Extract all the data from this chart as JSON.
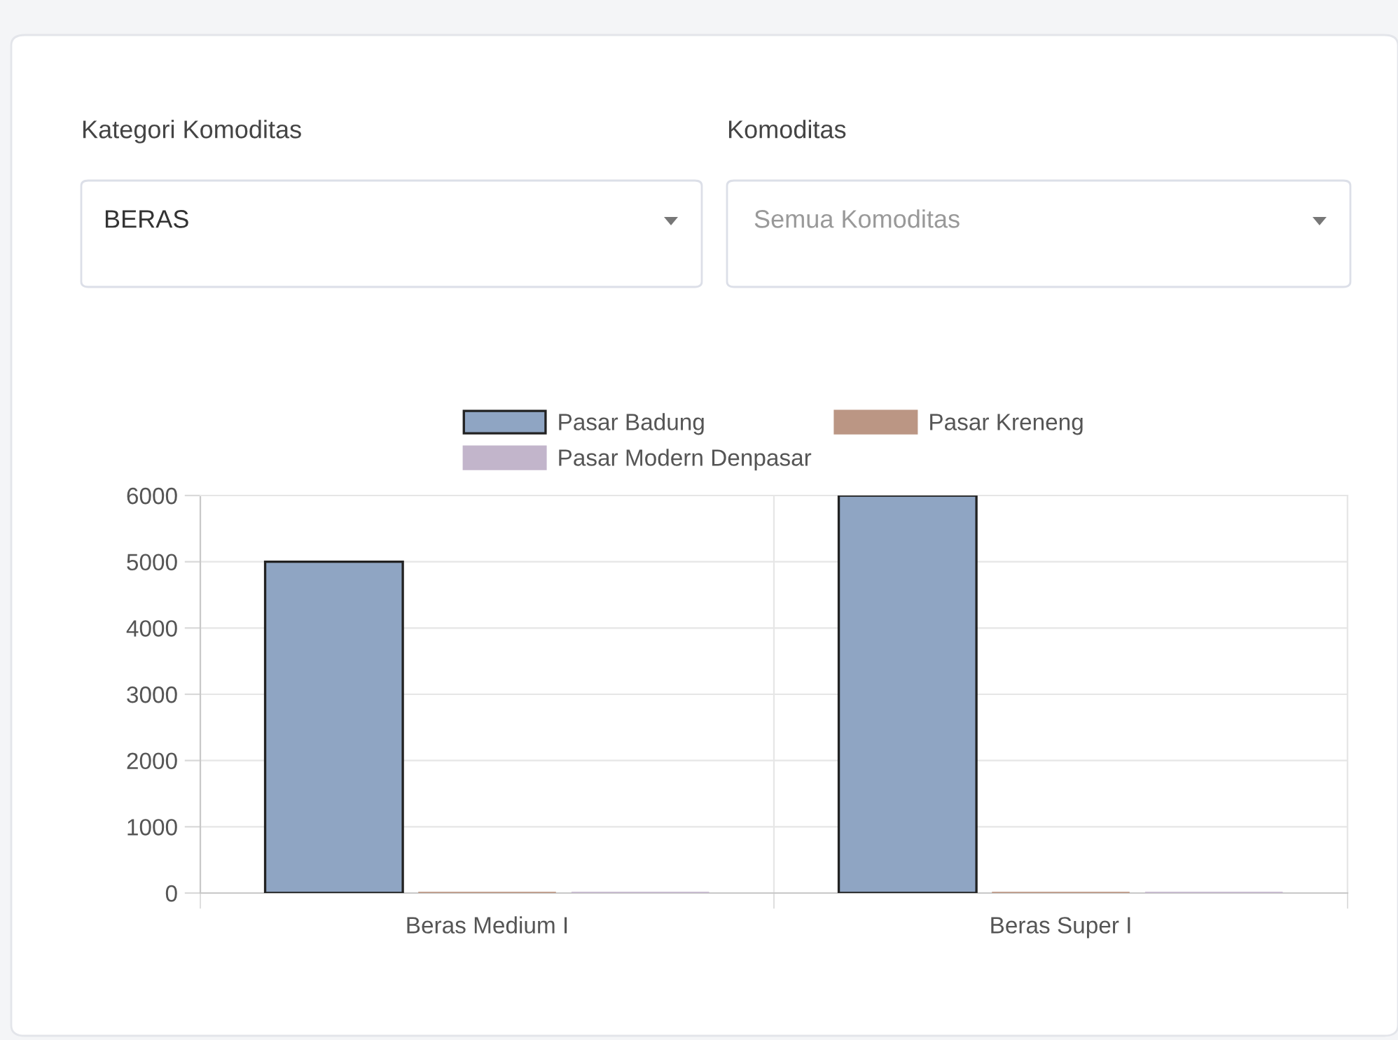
{
  "chart_data": {
    "type": "bar",
    "categories": [
      "Beras Medium I",
      "Beras Super I"
    ],
    "series": [
      {
        "name": "Pasar Badung",
        "color": "#8fa5c3",
        "values": [
          5000,
          6000
        ]
      },
      {
        "name": "Pasar Kreneng",
        "color": "#bb9684",
        "values": [
          0,
          0
        ]
      },
      {
        "name": "Pasar Modern Denpasar",
        "color": "#c2b5cb",
        "values": [
          0,
          0
        ]
      }
    ],
    "ylim": [
      0,
      6000
    ],
    "yticks": [
      0,
      1000,
      2000,
      3000,
      4000,
      5000,
      6000
    ],
    "grid": true,
    "legend": "top",
    "annotations": [
      "Kategori Komoditas",
      "BERAS",
      "Komoditas",
      "Semua Komoditas"
    ]
  }
}
